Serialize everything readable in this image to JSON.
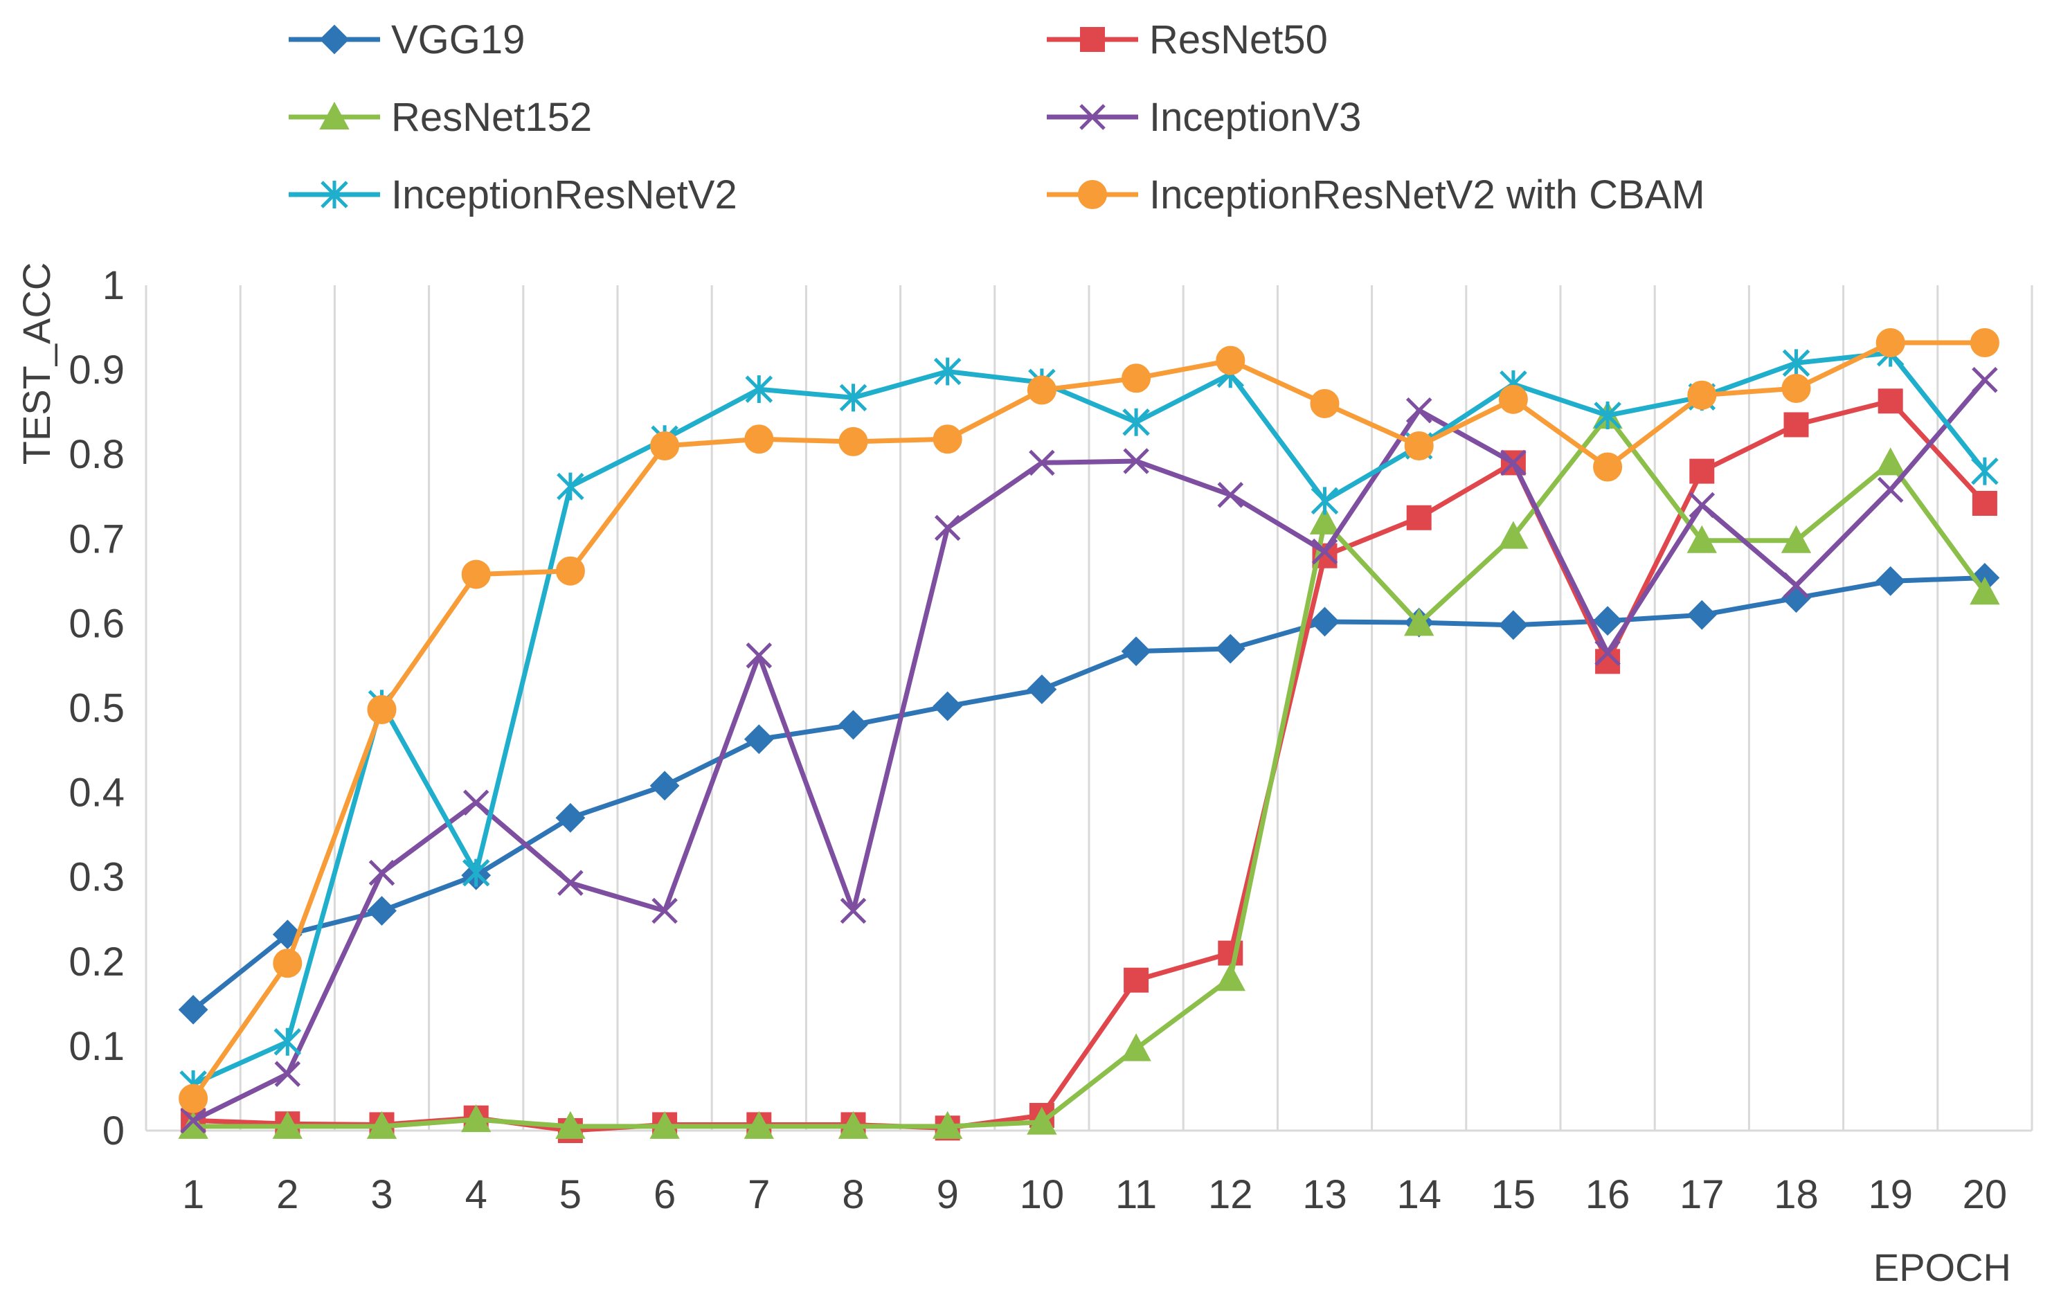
{
  "chart_data": {
    "type": "line",
    "title": "",
    "xlabel": "EPOCH",
    "ylabel": "TEST_ACC",
    "x": [
      1,
      2,
      3,
      4,
      5,
      6,
      7,
      8,
      9,
      10,
      11,
      12,
      13,
      14,
      15,
      16,
      17,
      18,
      19,
      20
    ],
    "x_tick_labels": [
      "1",
      "2",
      "3",
      "4",
      "5",
      "6",
      "7",
      "8",
      "9",
      "10",
      "11",
      "12",
      "13",
      "14",
      "15",
      "16",
      "17",
      "18",
      "19",
      "20"
    ],
    "ylim": [
      0,
      1
    ],
    "y_ticks": [
      0,
      0.1,
      0.2,
      0.3,
      0.4,
      0.5,
      0.6,
      0.7,
      0.8,
      0.9,
      1
    ],
    "y_tick_labels": [
      "0",
      "0.1",
      "0.2",
      "0.3",
      "0.4",
      "0.5",
      "0.6",
      "0.7",
      "0.8",
      "0.9",
      "1"
    ],
    "grid": "vertical",
    "legend_position": "top",
    "series": [
      {
        "name": "VGG19",
        "color": "#2E75B6",
        "marker": "diamond",
        "values": [
          0.143,
          0.232,
          0.26,
          0.302,
          0.37,
          0.408,
          0.463,
          0.48,
          0.502,
          0.522,
          0.567,
          0.57,
          0.602,
          0.601,
          0.598,
          0.603,
          0.61,
          0.63,
          0.65,
          0.654
        ]
      },
      {
        "name": "ResNet50",
        "color": "#E0474C",
        "marker": "square",
        "values": [
          0.012,
          0.008,
          0.007,
          0.015,
          0.0,
          0.007,
          0.007,
          0.007,
          0.003,
          0.018,
          0.178,
          0.21,
          0.68,
          0.725,
          0.79,
          0.555,
          0.78,
          0.835,
          0.863,
          0.742
        ]
      },
      {
        "name": "ResNet152",
        "color": "#8BBF4A",
        "marker": "triangle",
        "values": [
          0.005,
          0.005,
          0.005,
          0.013,
          0.005,
          0.005,
          0.005,
          0.005,
          0.005,
          0.01,
          0.097,
          0.18,
          0.72,
          0.6,
          0.703,
          0.845,
          0.698,
          0.698,
          0.79,
          0.637
        ]
      },
      {
        "name": "InceptionV3",
        "color": "#7E4FA0",
        "marker": "x",
        "values": [
          0.012,
          0.067,
          0.305,
          0.388,
          0.293,
          0.26,
          0.562,
          0.26,
          0.713,
          0.79,
          0.792,
          0.752,
          0.685,
          0.852,
          0.79,
          0.565,
          0.74,
          0.645,
          0.758,
          0.888
        ]
      },
      {
        "name": "InceptionResNetV2",
        "color": "#1FAECB",
        "marker": "star",
        "values": [
          0.055,
          0.105,
          0.505,
          0.305,
          0.762,
          0.818,
          0.877,
          0.867,
          0.898,
          0.885,
          0.838,
          0.895,
          0.745,
          0.81,
          0.883,
          0.846,
          0.868,
          0.908,
          0.92,
          0.78
        ]
      },
      {
        "name": "InceptionResNetV2 with CBAM",
        "color": "#F89C38",
        "marker": "circle",
        "values": [
          0.038,
          0.198,
          0.498,
          0.658,
          0.662,
          0.81,
          0.818,
          0.815,
          0.818,
          0.876,
          0.89,
          0.911,
          0.86,
          0.81,
          0.865,
          0.785,
          0.87,
          0.878,
          0.932,
          0.932
        ]
      }
    ]
  }
}
